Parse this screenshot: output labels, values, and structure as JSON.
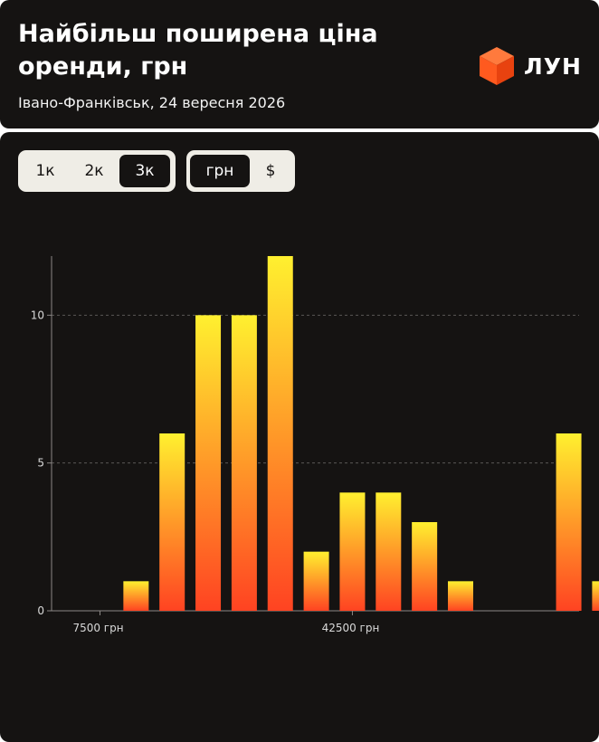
{
  "header": {
    "title": "Найбільш поширена ціна оренди, грн",
    "subtitle": "Івано-Франківськ, 24 вересня 2026",
    "brand": "ЛУН"
  },
  "controls": {
    "range": [
      {
        "label": "1к",
        "active": false
      },
      {
        "label": "2к",
        "active": false
      },
      {
        "label": "3к",
        "active": true
      }
    ],
    "currency": [
      {
        "label": "грн",
        "active": true
      },
      {
        "label": "$",
        "active": false
      }
    ]
  },
  "colors": {
    "background": "#151312",
    "bar_top": "#fff02f",
    "bar_bottom": "#ff4322",
    "brand_cube": "#ff5a1f"
  },
  "chart_data": {
    "type": "bar",
    "x_unit": "грн",
    "bin_width": 5000,
    "x": [
      7500,
      12500,
      17500,
      22500,
      27500,
      32500,
      37500,
      42500,
      47500,
      52500,
      57500,
      62500,
      67500,
      72500,
      77500
    ],
    "values": [
      0,
      1,
      6,
      10,
      10,
      12,
      2,
      4,
      4,
      3,
      1,
      0,
      0,
      6,
      1
    ],
    "x_ticks": [
      {
        "value": 7500,
        "label": "7500 грн"
      },
      {
        "value": 42500,
        "label": "42500 грн"
      }
    ],
    "y_ticks": [
      {
        "value": 0,
        "label": "0"
      },
      {
        "value": 5,
        "label": "5"
      },
      {
        "value": 10,
        "label": "10"
      }
    ],
    "ylim": [
      0,
      12
    ],
    "grid": "horizontal-dashed",
    "legend": "none"
  }
}
